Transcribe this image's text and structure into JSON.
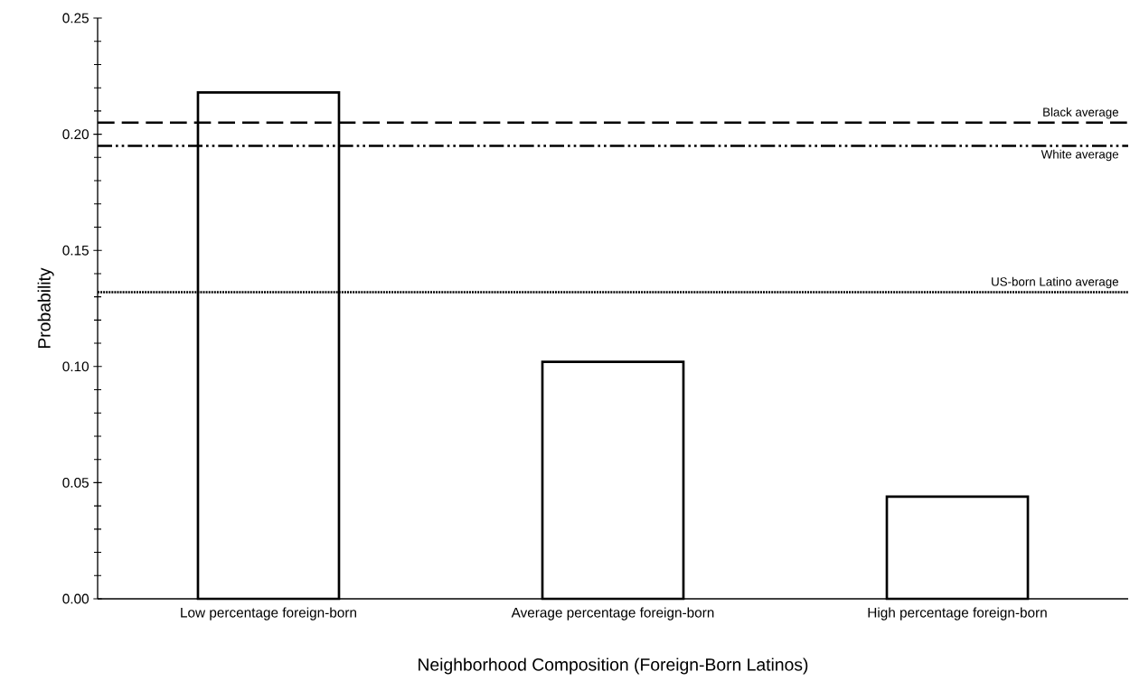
{
  "chart_data": {
    "type": "bar",
    "xlabel": "Neighborhood Composition (Foreign-Born Latinos)",
    "ylabel": "Probability",
    "categories": [
      "Low percentage foreign-born",
      "Average percentage foreign-born",
      "High percentage foreign-born"
    ],
    "values": [
      0.218,
      0.102,
      0.044
    ],
    "color": "#ffffff",
    "ylim": [
      0,
      0.25
    ],
    "yticks": [
      {
        "value": 0,
        "label": "0.00"
      },
      {
        "value": 0.05,
        "label": "0.05"
      },
      {
        "value": 0.1,
        "label": "0.10"
      },
      {
        "value": 0.15,
        "label": "0.15"
      },
      {
        "value": 0.2,
        "label": "0.20"
      },
      {
        "value": 0.25,
        "label": "0.25"
      }
    ],
    "ref_lines": [
      {
        "axis": "y",
        "value": 0.205,
        "label": "Black average",
        "line_style": "dashed"
      },
      {
        "axis": "y",
        "value": 0.195,
        "label": "White average",
        "line_style": "dashdotdotted"
      },
      {
        "axis": "y",
        "value": 0.132,
        "label": "US-born Latino average",
        "line_style": "dotted"
      }
    ],
    "grid": false
  }
}
